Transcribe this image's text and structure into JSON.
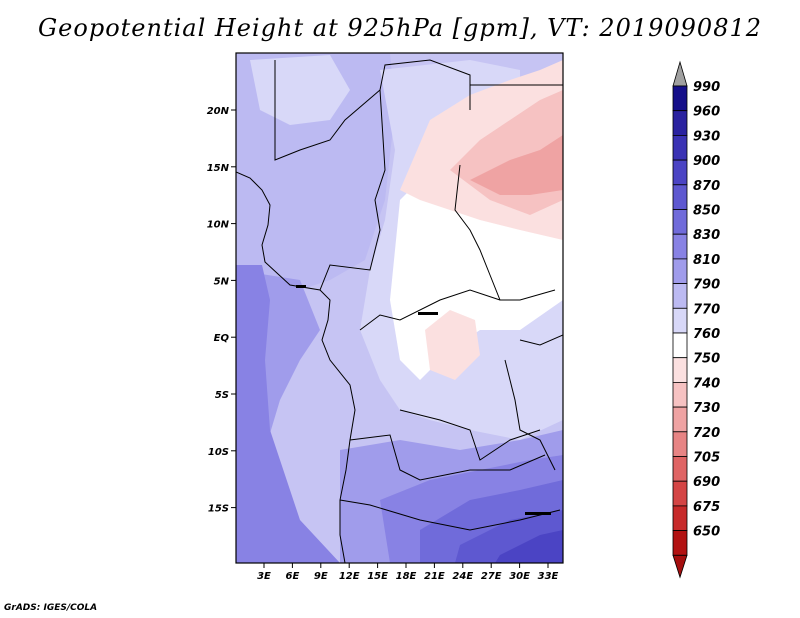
{
  "title": "Geopotential Height at 925hPa [gpm], VT: 2019090812",
  "credit": "GrADS: IGES/COLA",
  "map": {
    "lon_ticks": [
      "3E",
      "6E",
      "9E",
      "12E",
      "15E",
      "18E",
      "21E",
      "24E",
      "27E",
      "30E",
      "33E"
    ],
    "lat_ticks": [
      "20N",
      "15N",
      "10N",
      "5N",
      "EQ",
      "5S",
      "10S",
      "15S"
    ]
  },
  "colorbar": {
    "levels": [
      "990",
      "960",
      "930",
      "900",
      "870",
      "850",
      "830",
      "810",
      "790",
      "770",
      "760",
      "750",
      "740",
      "730",
      "720",
      "705",
      "690",
      "675",
      "650"
    ],
    "colors": [
      "#150f8a",
      "#2a22a0",
      "#3a32b4",
      "#4b44c4",
      "#5e58d0",
      "#706bda",
      "#8882e4",
      "#a09ceb",
      "#bcbaf2",
      "#d8d8f8",
      "#ffffff",
      "#fbe0e0",
      "#f6c2c2",
      "#efa3a3",
      "#e78484",
      "#df6464",
      "#d44545",
      "#c72a2a",
      "#b21212"
    ],
    "top_arrow_color": "#a0a0a0",
    "bottom_arrow_color": "#a50f0f"
  }
}
